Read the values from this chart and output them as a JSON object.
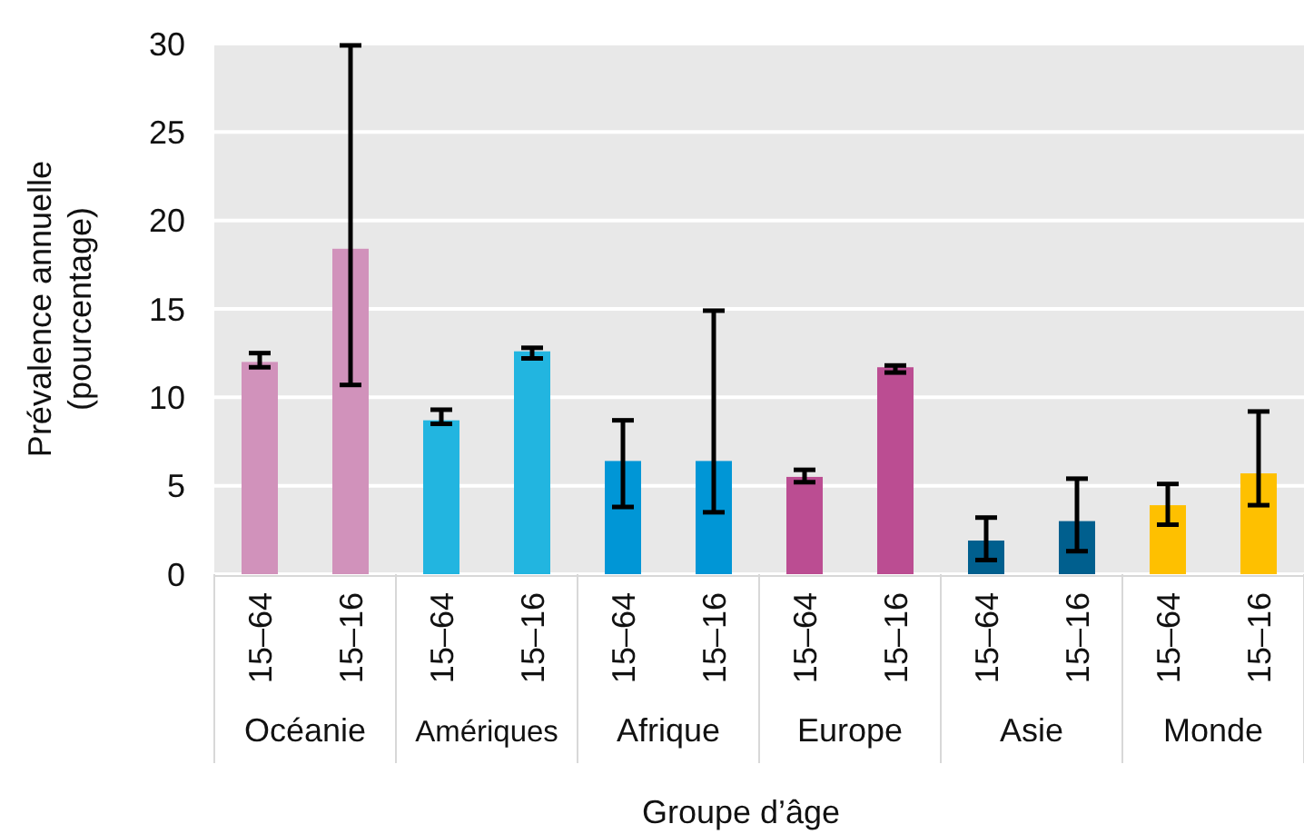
{
  "chart_data": {
    "type": "bar",
    "xlabel": "Groupe d’âge",
    "ylabel": "Prévalence annuelle (pourcentage)",
    "categories": [
      "15–64",
      "15–16",
      "15–64",
      "15–16",
      "15–64",
      "15–16",
      "15–64",
      "15–16",
      "15–64",
      "15–16",
      "15–64",
      "15–16"
    ],
    "values": [
      12.0,
      18.4,
      8.7,
      12.6,
      6.4,
      6.4,
      5.5,
      11.7,
      1.9,
      3.0,
      3.9,
      5.7
    ],
    "colors": [
      "#d192bb",
      "#d192bb",
      "#22b5e0",
      "#22b5e0",
      "#0096d6",
      "#0096d6",
      "#bb4d92",
      "#bb4d92",
      "#005f8e",
      "#005f8e",
      "#fec000",
      "#fec000"
    ],
    "errors": [
      [
        11.7,
        12.5
      ],
      [
        10.7,
        29.9
      ],
      [
        8.5,
        9.3
      ],
      [
        12.2,
        12.8
      ],
      [
        3.8,
        8.7
      ],
      [
        3.5,
        14.9
      ],
      [
        5.2,
        5.9
      ],
      [
        11.4,
        11.8
      ],
      [
        0.8,
        3.2
      ],
      [
        1.3,
        5.4
      ],
      [
        2.8,
        5.1
      ],
      [
        3.9,
        9.2
      ]
    ],
    "annotations": [
      "Océanie",
      "Amériques",
      "Afrique",
      "Europe",
      "Asie",
      "Monde"
    ],
    "ylim": [
      0,
      30
    ],
    "yticks": [
      0,
      5,
      10,
      15,
      20,
      25,
      30
    ],
    "grid": "y"
  }
}
